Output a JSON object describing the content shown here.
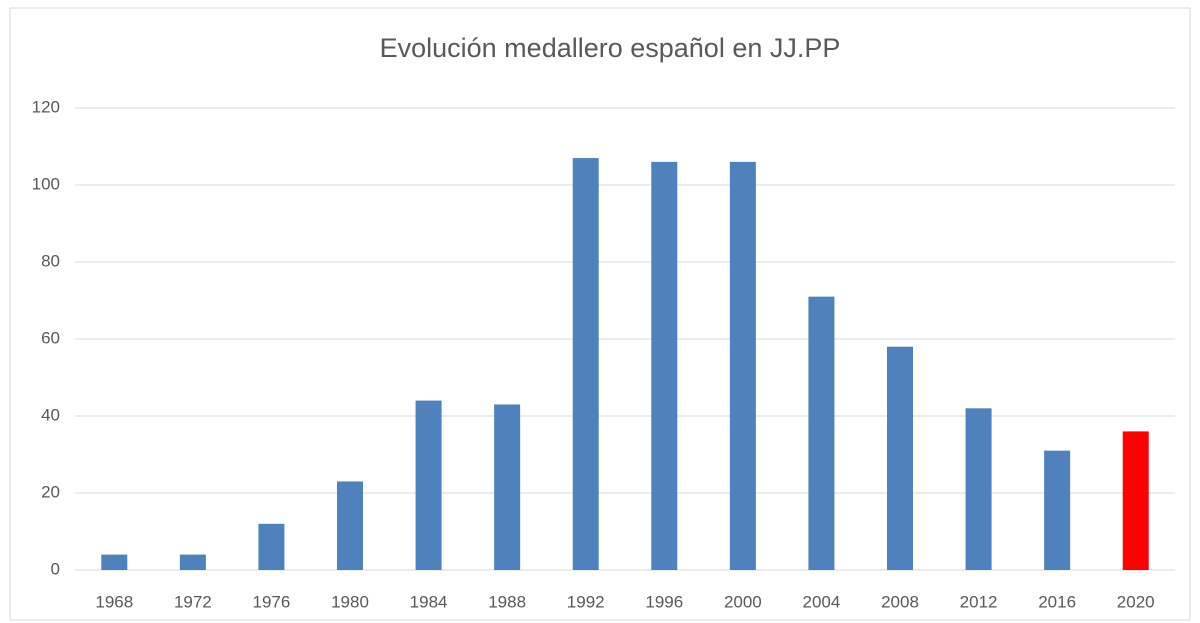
{
  "chart_data": {
    "type": "bar",
    "title": "Evolución medallero español en JJ.PP",
    "categories": [
      "1968",
      "1972",
      "1976",
      "1980",
      "1984",
      "1988",
      "1992",
      "1996",
      "2000",
      "2004",
      "2008",
      "2012",
      "2016",
      "2020"
    ],
    "values": [
      4,
      4,
      12,
      23,
      44,
      43,
      107,
      106,
      106,
      71,
      58,
      42,
      31,
      36
    ],
    "colors": [
      "#4f81bd",
      "#4f81bd",
      "#4f81bd",
      "#4f81bd",
      "#4f81bd",
      "#4f81bd",
      "#4f81bd",
      "#4f81bd",
      "#4f81bd",
      "#4f81bd",
      "#4f81bd",
      "#4f81bd",
      "#4f81bd",
      "#ff0000"
    ],
    "ylim": [
      0,
      120
    ],
    "yticks": [
      0,
      20,
      40,
      60,
      80,
      100,
      120
    ],
    "grid": true
  }
}
